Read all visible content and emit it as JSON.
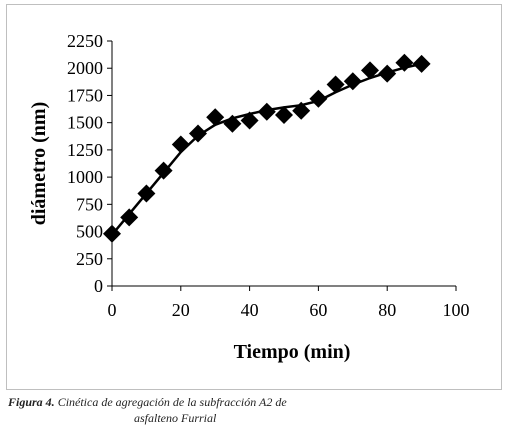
{
  "figure": {
    "label": "Figura 4.",
    "caption_line1": " Cinética de agregación de la subfracción A2 de",
    "caption_line2": "asfalteno Furrial"
  },
  "colors": {
    "marker": "#000000",
    "axis": "#000000",
    "frame": "#bfbfbf"
  },
  "chart_data": {
    "type": "scatter",
    "xlabel": "Tiempo (min)",
    "ylabel": "diámetro (nm)",
    "xlim": [
      0,
      100
    ],
    "ylim": [
      0,
      2250
    ],
    "xticks": [
      0,
      20,
      40,
      60,
      80,
      100
    ],
    "yticks": [
      0,
      250,
      500,
      750,
      1000,
      1250,
      1500,
      1750,
      2000,
      2250
    ],
    "grid": false,
    "marker": "diamond",
    "series": [
      {
        "points": [
          [
            0,
            480
          ],
          [
            5,
            630
          ],
          [
            10,
            850
          ],
          [
            15,
            1060
          ],
          [
            20,
            1300
          ],
          [
            25,
            1400
          ],
          [
            30,
            1550
          ],
          [
            35,
            1490
          ],
          [
            40,
            1520
          ],
          [
            45,
            1600
          ],
          [
            50,
            1570
          ],
          [
            55,
            1610
          ],
          [
            60,
            1720
          ],
          [
            65,
            1850
          ],
          [
            70,
            1880
          ],
          [
            75,
            1980
          ],
          [
            80,
            1950
          ],
          [
            85,
            2050
          ],
          [
            90,
            2040
          ]
        ]
      }
    ],
    "trendline": [
      [
        0,
        470
      ],
      [
        5,
        660
      ],
      [
        10,
        850
      ],
      [
        15,
        1040
      ],
      [
        20,
        1230
      ],
      [
        25,
        1380
      ],
      [
        30,
        1480
      ],
      [
        35,
        1540
      ],
      [
        40,
        1580
      ],
      [
        45,
        1615
      ],
      [
        50,
        1640
      ],
      [
        55,
        1660
      ],
      [
        60,
        1700
      ],
      [
        65,
        1780
      ],
      [
        70,
        1850
      ],
      [
        75,
        1910
      ],
      [
        80,
        1960
      ],
      [
        85,
        2005
      ],
      [
        90,
        2040
      ]
    ]
  }
}
